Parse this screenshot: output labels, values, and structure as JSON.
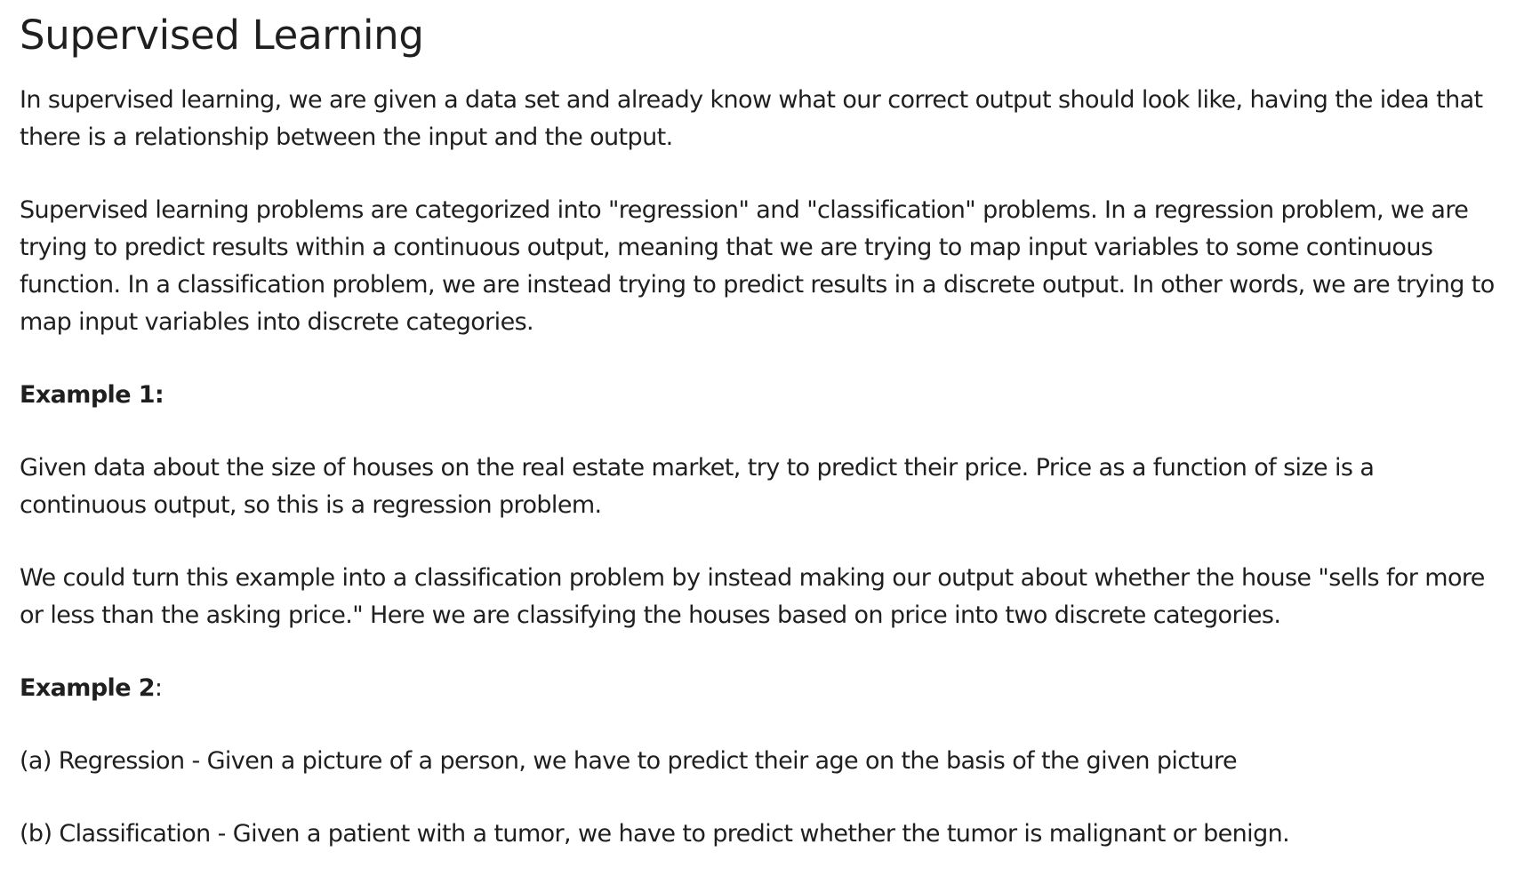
{
  "document": {
    "title": "Supervised Learning",
    "intro": "In supervised learning, we are given a data set and already know what our correct output should look like, having the idea that there is a relationship between the input and the output.",
    "categories": "Supervised learning problems are categorized into \"regression\" and \"classification\" problems. In a regression problem, we are trying to predict results within a continuous output, meaning that we are trying to map input variables to some continuous function. In a classification problem, we are instead trying to predict results in a discrete output. In other words, we are trying to map input variables into discrete categories.",
    "example1": {
      "heading": "Example 1:",
      "regression": "Given data about the size of houses on the real estate market, try to predict their price. Price as a function of size is a continuous output, so this is a regression problem.",
      "classification": "We could turn this example into a classification problem by instead making our output about whether the house \"sells for more or less than the asking price.\" Here we are classifying the houses based on price into two discrete categories."
    },
    "example2": {
      "heading": "Example 2",
      "heading_suffix": ":",
      "item_a": "(a) Regression - Given a picture of a person, we have to predict their age on the basis of the given picture",
      "item_b": "(b) Classification - Given a patient with a tumor, we have to predict whether the tumor is malignant or benign."
    }
  }
}
